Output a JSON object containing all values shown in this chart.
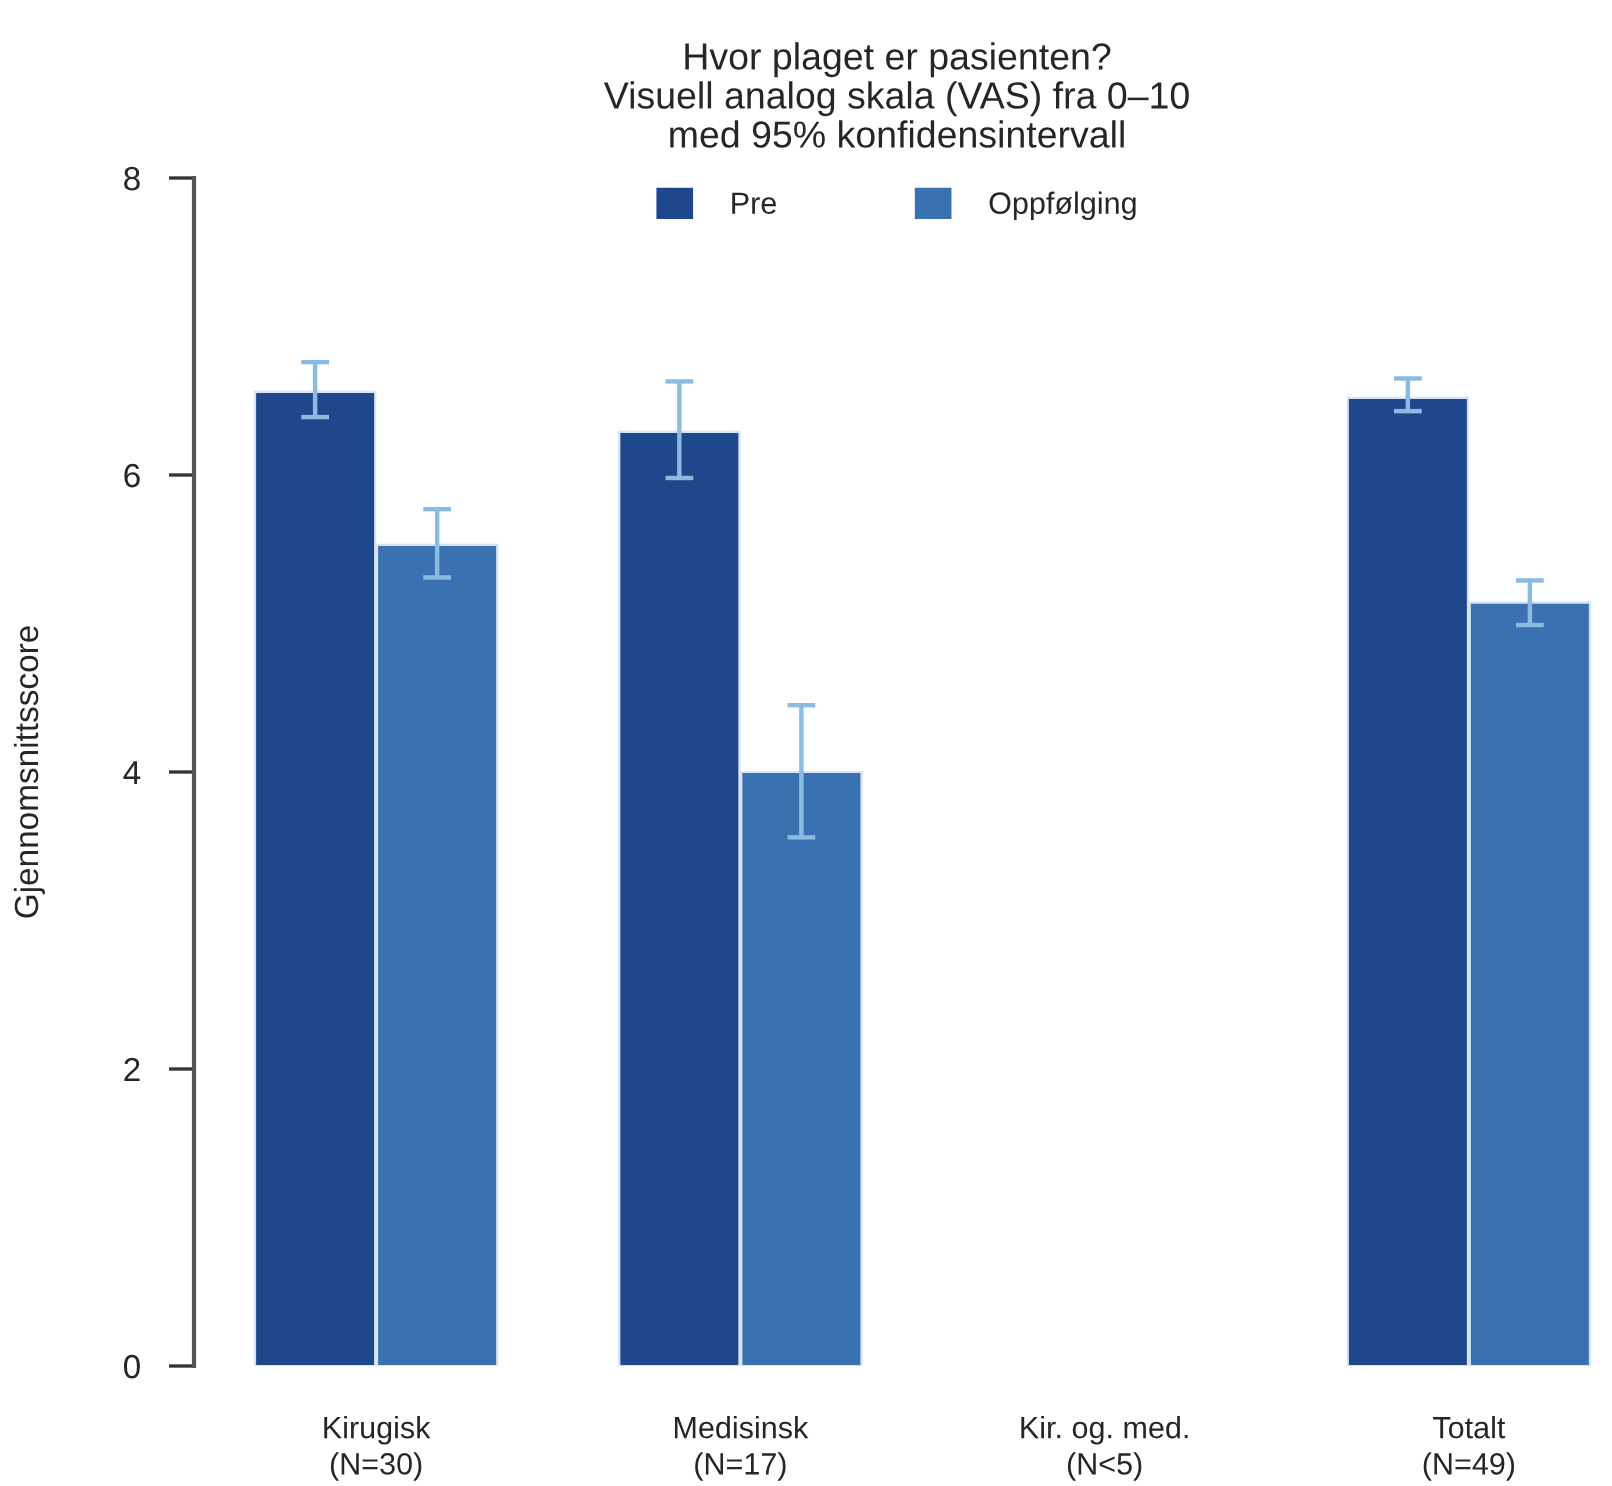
{
  "chart_data": {
    "type": "bar",
    "title": "Hvor plaget er pasienten?\nVisuell analog skala (VAS) fra 0–10\nmed 95% konfidensintervall",
    "ylabel": "Gjennomsnittsscore",
    "categories": [
      "Kirugisk\n(N=30)",
      "Medisinsk\n(N=17)",
      "Kir. og. med.\n(N<5)",
      "Totalt\n(N=49)"
    ],
    "series": [
      {
        "name": "Pre",
        "color": "#1f478c",
        "values": [
          6.56,
          6.29,
          null,
          6.52
        ],
        "errors": [
          [
            6.39,
            6.76
          ],
          [
            5.98,
            6.63
          ],
          null,
          [
            6.43,
            6.65
          ]
        ]
      },
      {
        "name": "Oppfølging",
        "color": "#3a71b0",
        "values": [
          5.53,
          4.0,
          null,
          5.14
        ],
        "errors": [
          [
            5.31,
            5.77
          ],
          [
            3.56,
            4.45
          ],
          null,
          [
            4.99,
            5.29
          ]
        ]
      }
    ],
    "ylim": [
      0,
      8
    ],
    "yticks": [
      0,
      2,
      4,
      6,
      8
    ],
    "grid": false,
    "legend": "top"
  }
}
